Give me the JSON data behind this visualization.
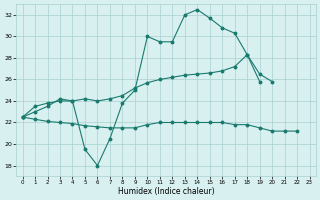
{
  "x": [
    0,
    1,
    2,
    3,
    4,
    5,
    6,
    7,
    8,
    9,
    10,
    11,
    12,
    13,
    14,
    15,
    16,
    17,
    18,
    19,
    20,
    21,
    22,
    23
  ],
  "line1_y": [
    22.5,
    23.5,
    23.8,
    24.0,
    24.0,
    19.5,
    18.0,
    20.5,
    23.8,
    25.0,
    30.0,
    29.5,
    29.5,
    32.0,
    32.5,
    31.7,
    30.8,
    30.3,
    28.3,
    25.8,
    null,
    null,
    null,
    null
  ],
  "line2_y": [
    22.5,
    23.0,
    23.5,
    24.2,
    24.0,
    24.2,
    24.0,
    24.2,
    24.5,
    25.2,
    25.7,
    26.0,
    26.2,
    26.4,
    26.5,
    26.6,
    26.8,
    27.2,
    28.3,
    26.5,
    25.8,
    null,
    null,
    null
  ],
  "line3_y": [
    22.5,
    22.3,
    22.1,
    22.0,
    21.9,
    21.7,
    21.6,
    21.5,
    21.5,
    21.5,
    21.8,
    22.0,
    22.0,
    22.0,
    22.0,
    22.0,
    22.0,
    21.8,
    21.8,
    21.5,
    21.2,
    21.2,
    21.2,
    null
  ],
  "line_color": "#1a7a6e",
  "bg_color": "#d8f0f0",
  "grid_color": "#aacfcf",
  "xlabel": "Humidex (Indice chaleur)",
  "ylim": [
    17,
    33
  ],
  "xlim": [
    -0.5,
    23.5
  ],
  "yticks": [
    18,
    20,
    22,
    24,
    26,
    28,
    30,
    32
  ],
  "xticks": [
    0,
    1,
    2,
    3,
    4,
    5,
    6,
    7,
    8,
    9,
    10,
    11,
    12,
    13,
    14,
    15,
    16,
    17,
    18,
    19,
    20,
    21,
    22,
    23
  ]
}
